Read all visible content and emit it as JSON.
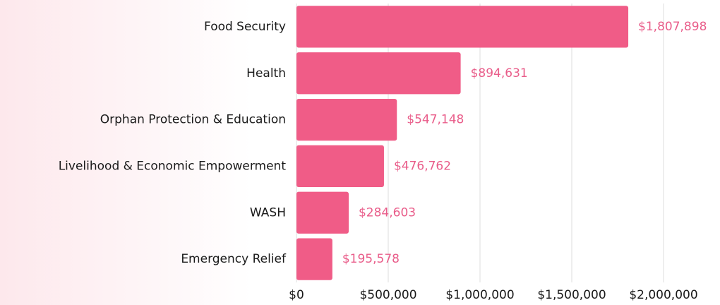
{
  "chart_data": {
    "type": "hbar",
    "categories": [
      "Food Security",
      "Health",
      "Orphan Protection & Education",
      "Livelihood & Economic Empowerment",
      "WASH",
      "Emergency Relief"
    ],
    "values": [
      1807898,
      894631,
      547148,
      476762,
      284603,
      195578
    ],
    "value_labels": [
      "$1,807,898",
      "$894,631",
      "$547,148",
      "$476,762",
      "$284,603",
      "$195,578"
    ],
    "color": "#f05c87",
    "xlim": [
      0,
      2000000
    ],
    "xticks": [
      {
        "value": 0,
        "label": "$0"
      },
      {
        "value": 500000,
        "label": "$500,000"
      },
      {
        "value": 1000000,
        "label": "$1,000,000"
      },
      {
        "value": 1500000,
        "label": "$1,500,000"
      },
      {
        "value": 2000000,
        "label": "$2,000,000"
      }
    ],
    "grid": true
  }
}
